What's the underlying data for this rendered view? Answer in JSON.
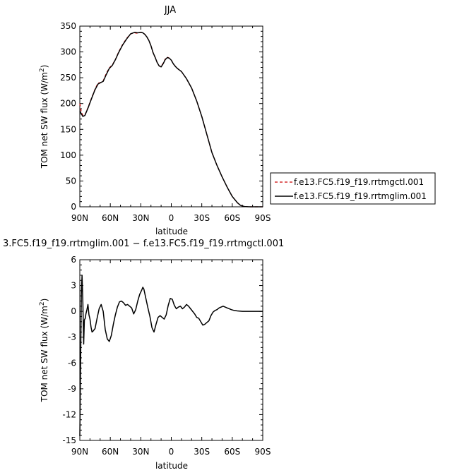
{
  "chart_data": [
    {
      "type": "line",
      "title": "JJA",
      "xlabel": "latitude",
      "ylabel": "TOM net SW flux (W/m",
      "ylabel_sup": "2",
      "ylabel_end": ")",
      "xlim": [
        90,
        -90
      ],
      "ylim": [
        0,
        350
      ],
      "x_ticks": [
        90,
        60,
        30,
        0,
        -30,
        -60,
        -90
      ],
      "x_tick_labels": [
        "90N",
        "60N",
        "30N",
        "0",
        "30S",
        "60S",
        "90S"
      ],
      "y_ticks": [
        0,
        50,
        100,
        150,
        200,
        250,
        300,
        350
      ],
      "y_tick_labels": [
        "0",
        "50",
        "100",
        "150",
        "200",
        "250",
        "300",
        "350"
      ],
      "legend_position": "right",
      "series": [
        {
          "name": "f.e13.FC5.f19_f19.rrtmgctl.001",
          "color": "#cc0000",
          "dash": "dashed",
          "x": [
            90,
            88.5,
            87,
            85,
            82,
            78,
            75,
            72,
            70,
            67,
            64,
            61,
            58,
            55,
            52,
            48,
            44,
            40,
            36,
            33,
            30,
            28,
            26,
            24,
            22,
            20,
            18,
            16,
            14,
            12,
            10,
            8,
            6,
            4,
            2,
            0,
            -2,
            -4,
            -6,
            -8,
            -10,
            -15,
            -20,
            -25,
            -30,
            -35,
            -40,
            -45,
            -50,
            -55,
            -60,
            -65,
            -68,
            -70,
            -72,
            -75,
            -78,
            -80,
            -85,
            -90
          ],
          "y": [
            200,
            183,
            177,
            178,
            192,
            213,
            228,
            240,
            240,
            244,
            258,
            269,
            275,
            285,
            299,
            314,
            326,
            335,
            337,
            336,
            338,
            337,
            334,
            329,
            322,
            312,
            299,
            290,
            280,
            273,
            272,
            278,
            286,
            290,
            288,
            284,
            277,
            272,
            268,
            265,
            262,
            248,
            230,
            205,
            175,
            140,
            105,
            80,
            58,
            38,
            20,
            8,
            3,
            1.5,
            0.5,
            0.2,
            0,
            0,
            0,
            0
          ]
        },
        {
          "name": "f.e13.FC5.f19_f19.rrtmglim.001",
          "color": "#000000",
          "dash": "solid",
          "x": [
            90,
            88.5,
            87,
            85,
            82,
            78,
            75,
            72,
            70,
            67,
            64,
            61,
            58,
            55,
            52,
            48,
            44,
            40,
            36,
            33,
            30,
            28,
            26,
            24,
            22,
            20,
            18,
            16,
            14,
            12,
            10,
            8,
            6,
            4,
            2,
            0,
            -2,
            -4,
            -6,
            -8,
            -10,
            -15,
            -20,
            -25,
            -30,
            -35,
            -40,
            -45,
            -50,
            -55,
            -60,
            -65,
            -68,
            -70,
            -72,
            -75,
            -78,
            -80,
            -85,
            -90
          ],
          "y": [
            186,
            180,
            175,
            177,
            191,
            212,
            227,
            238,
            240,
            243,
            256,
            268,
            274,
            285,
            298,
            313,
            325,
            335,
            338,
            337,
            338,
            337,
            334,
            329,
            322,
            312,
            299,
            290,
            280,
            273,
            271,
            277,
            285,
            289,
            288,
            284,
            277,
            272,
            268,
            265,
            262,
            248,
            230,
            205,
            175,
            140,
            105,
            80,
            58,
            38,
            20,
            8,
            3,
            1.5,
            0.5,
            0.2,
            0,
            0,
            0,
            0
          ]
        }
      ]
    },
    {
      "type": "line",
      "title": "3.FC5.f19_f19.rrtmglim.001 − f.e13.FC5.f19_f19.rrtmgctl.001",
      "xlabel": "latitude",
      "ylabel": "TOM net SW flux (W/m",
      "ylabel_sup": "2",
      "ylabel_end": ")",
      "xlim": [
        90,
        -90
      ],
      "ylim": [
        -15,
        6
      ],
      "x_ticks": [
        90,
        60,
        30,
        0,
        -30,
        -60,
        -90
      ],
      "x_tick_labels": [
        "90N",
        "60N",
        "30N",
        "0",
        "30S",
        "60S",
        "90S"
      ],
      "y_ticks": [
        6,
        3,
        0,
        -3,
        -6,
        -9,
        -12,
        -15
      ],
      "y_tick_labels": [
        "6",
        "3",
        "0",
        "-3",
        "-6",
        "-9",
        "-12",
        "-15"
      ],
      "series": [
        {
          "color": "#000000",
          "dash": "solid",
          "x": [
            90,
            89.4,
            88.5,
            87.8,
            87,
            86.2,
            85.5,
            84.6,
            84,
            83,
            82,
            81,
            80,
            79,
            78,
            77,
            75,
            73,
            71,
            69,
            67,
            65,
            63,
            61,
            59,
            57,
            55,
            53,
            51,
            49,
            47,
            45,
            43,
            41,
            39,
            37,
            35,
            33,
            31,
            29,
            28,
            27,
            25,
            23,
            21,
            19,
            17,
            15,
            13,
            11,
            9,
            7,
            5,
            3,
            1,
            -1,
            -3,
            -5,
            -7,
            -9,
            -11,
            -13,
            -15,
            -17,
            -19,
            -21,
            -23,
            -25,
            -27,
            -29,
            -31,
            -33,
            -35,
            -37,
            -39,
            -41,
            -43,
            -45,
            -47,
            -49,
            -51,
            -53,
            -55,
            -57,
            -59,
            -62,
            -65,
            -70,
            -75,
            -80,
            -85,
            -90
          ],
          "y": [
            -14.5,
            -8,
            2,
            4.2,
            1,
            -3.8,
            -1,
            -0.8,
            -0.3,
            0.2,
            0.8,
            -0.4,
            -0.9,
            -1.8,
            -2.4,
            -2.3,
            -2,
            -0.8,
            0.3,
            0.8,
            0,
            -2.1,
            -3.2,
            -3.5,
            -2.8,
            -1.5,
            -0.4,
            0.5,
            1.1,
            1.2,
            1,
            0.7,
            0.8,
            0.6,
            0.4,
            -0.3,
            0.2,
            1.2,
            2,
            2.5,
            2.8,
            2.6,
            1.5,
            0.4,
            -0.6,
            -1.9,
            -2.4,
            -1.5,
            -0.7,
            -0.5,
            -0.7,
            -0.9,
            -0.4,
            0.7,
            1.5,
            1.4,
            0.7,
            0.3,
            0.5,
            0.6,
            0.3,
            0.5,
            0.8,
            0.6,
            0.3,
            0,
            -0.3,
            -0.7,
            -0.8,
            -1.2,
            -1.6,
            -1.5,
            -1.3,
            -1.1,
            -0.5,
            -0.1,
            0.1,
            0.2,
            0.4,
            0.5,
            0.6,
            0.5,
            0.4,
            0.3,
            0.2,
            0.1,
            0.05,
            0,
            0,
            0,
            0,
            0
          ]
        }
      ]
    }
  ]
}
